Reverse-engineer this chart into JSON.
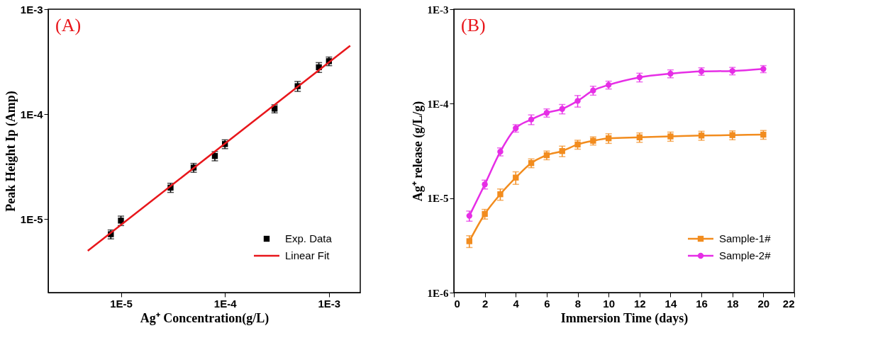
{
  "chart_data": [
    {
      "type": "scatter",
      "xlabel": "Ag⁺ Concentration(g/L)",
      "ylabel": "Peak Height Ip (Amp)",
      "annotations": [
        "(A)"
      ],
      "log": "xy",
      "grid": false,
      "legend": "bottom right",
      "xlim": [
        2e-06,
        0.002
      ],
      "ylim": [
        2e-06,
        0.001
      ],
      "xticks": [
        {
          "value": 1e-05,
          "label": "1E-5"
        },
        {
          "value": 0.0001,
          "label": "1E-4"
        },
        {
          "value": 0.001,
          "label": "1E-3"
        }
      ],
      "yticks": [
        {
          "value": 1e-05,
          "label": "1E-5"
        },
        {
          "value": 0.0001,
          "label": "1E-4"
        },
        {
          "value": 0.001,
          "label": "1E-3"
        }
      ],
      "series": [
        {
          "name": "Exp. Data",
          "marker": "square",
          "color": "#000000",
          "x": [
            8e-06,
            1e-05,
            3e-05,
            5e-05,
            8e-05,
            0.0001,
            0.0003,
            0.0005,
            0.0008,
            0.001
          ],
          "values": [
            7.2e-06,
            9.7e-06,
            2e-05,
            3.1e-05,
            4e-05,
            5.2e-05,
            0.000113,
            0.000185,
            0.00028,
            0.00032
          ],
          "errors": [
            7e-07,
            1e-06,
            2e-06,
            3e-06,
            4e-06,
            5e-06,
            1e-05,
            2e-05,
            3e-05,
            3e-05
          ]
        },
        {
          "name": "Linear Fit",
          "type": "line",
          "marker": "none",
          "color": "#e8161b",
          "x": [
            4.8e-06,
            0.0016
          ],
          "values": [
            5e-06,
            0.00045
          ]
        }
      ]
    },
    {
      "type": "line",
      "xlabel": "Immersion Time (days)",
      "ylabel": "Ag⁺ release (g/L/g)",
      "annotations": [
        "(B)"
      ],
      "log": "y",
      "grid": false,
      "legend": "bottom right",
      "line_style": "solid",
      "xlim": [
        0,
        22
      ],
      "ylim": [
        1e-06,
        0.001
      ],
      "xticks": [
        0,
        2,
        4,
        6,
        8,
        10,
        12,
        14,
        16,
        18,
        20,
        22
      ],
      "yticks": [
        {
          "value": 1e-06,
          "label": "1E-6"
        },
        {
          "value": 1e-05,
          "label": "1E-5"
        },
        {
          "value": 0.0001,
          "label": "1E-4"
        },
        {
          "value": 0.001,
          "label": "1E-3"
        }
      ],
      "series": [
        {
          "name": "Sample-1#",
          "marker": "square",
          "color": "#f28c1e",
          "x": [
            1,
            2,
            3,
            4,
            5,
            6,
            7,
            8,
            9,
            10,
            12,
            14,
            16,
            18,
            20
          ],
          "values": [
            3.5e-06,
            6.8e-06,
            1.1e-05,
            1.65e-05,
            2.35e-05,
            2.85e-05,
            3.15e-05,
            3.7e-05,
            4.05e-05,
            4.3e-05,
            4.4e-05,
            4.5e-05,
            4.6e-05,
            4.65e-05,
            4.7e-05
          ],
          "errors": [
            5e-07,
            8e-07,
            1.5e-06,
            2.5e-06,
            2.5e-06,
            3e-06,
            4e-06,
            4e-06,
            4e-06,
            5e-06,
            5e-06,
            5e-06,
            5e-06,
            5e-06,
            5e-06
          ]
        },
        {
          "name": "Sample-2#",
          "marker": "circle",
          "color": "#e62ee6",
          "x": [
            1,
            2,
            3,
            4,
            5,
            6,
            7,
            8,
            9,
            10,
            12,
            14,
            16,
            18,
            20
          ],
          "values": [
            6.5e-06,
            1.4e-05,
            3.1e-05,
            5.5e-05,
            6.8e-05,
            8e-05,
            8.8e-05,
            0.000107,
            0.000138,
            0.000158,
            0.00019,
            0.000208,
            0.00022,
            0.000222,
            0.000233
          ],
          "errors": [
            8e-07,
            1.5e-06,
            3e-06,
            5e-06,
            8e-06,
            8e-06,
            1e-05,
            1.5e-05,
            1.5e-05,
            1.5e-05,
            2e-05,
            2e-05,
            2e-05,
            2e-05,
            2e-05
          ]
        }
      ]
    }
  ]
}
